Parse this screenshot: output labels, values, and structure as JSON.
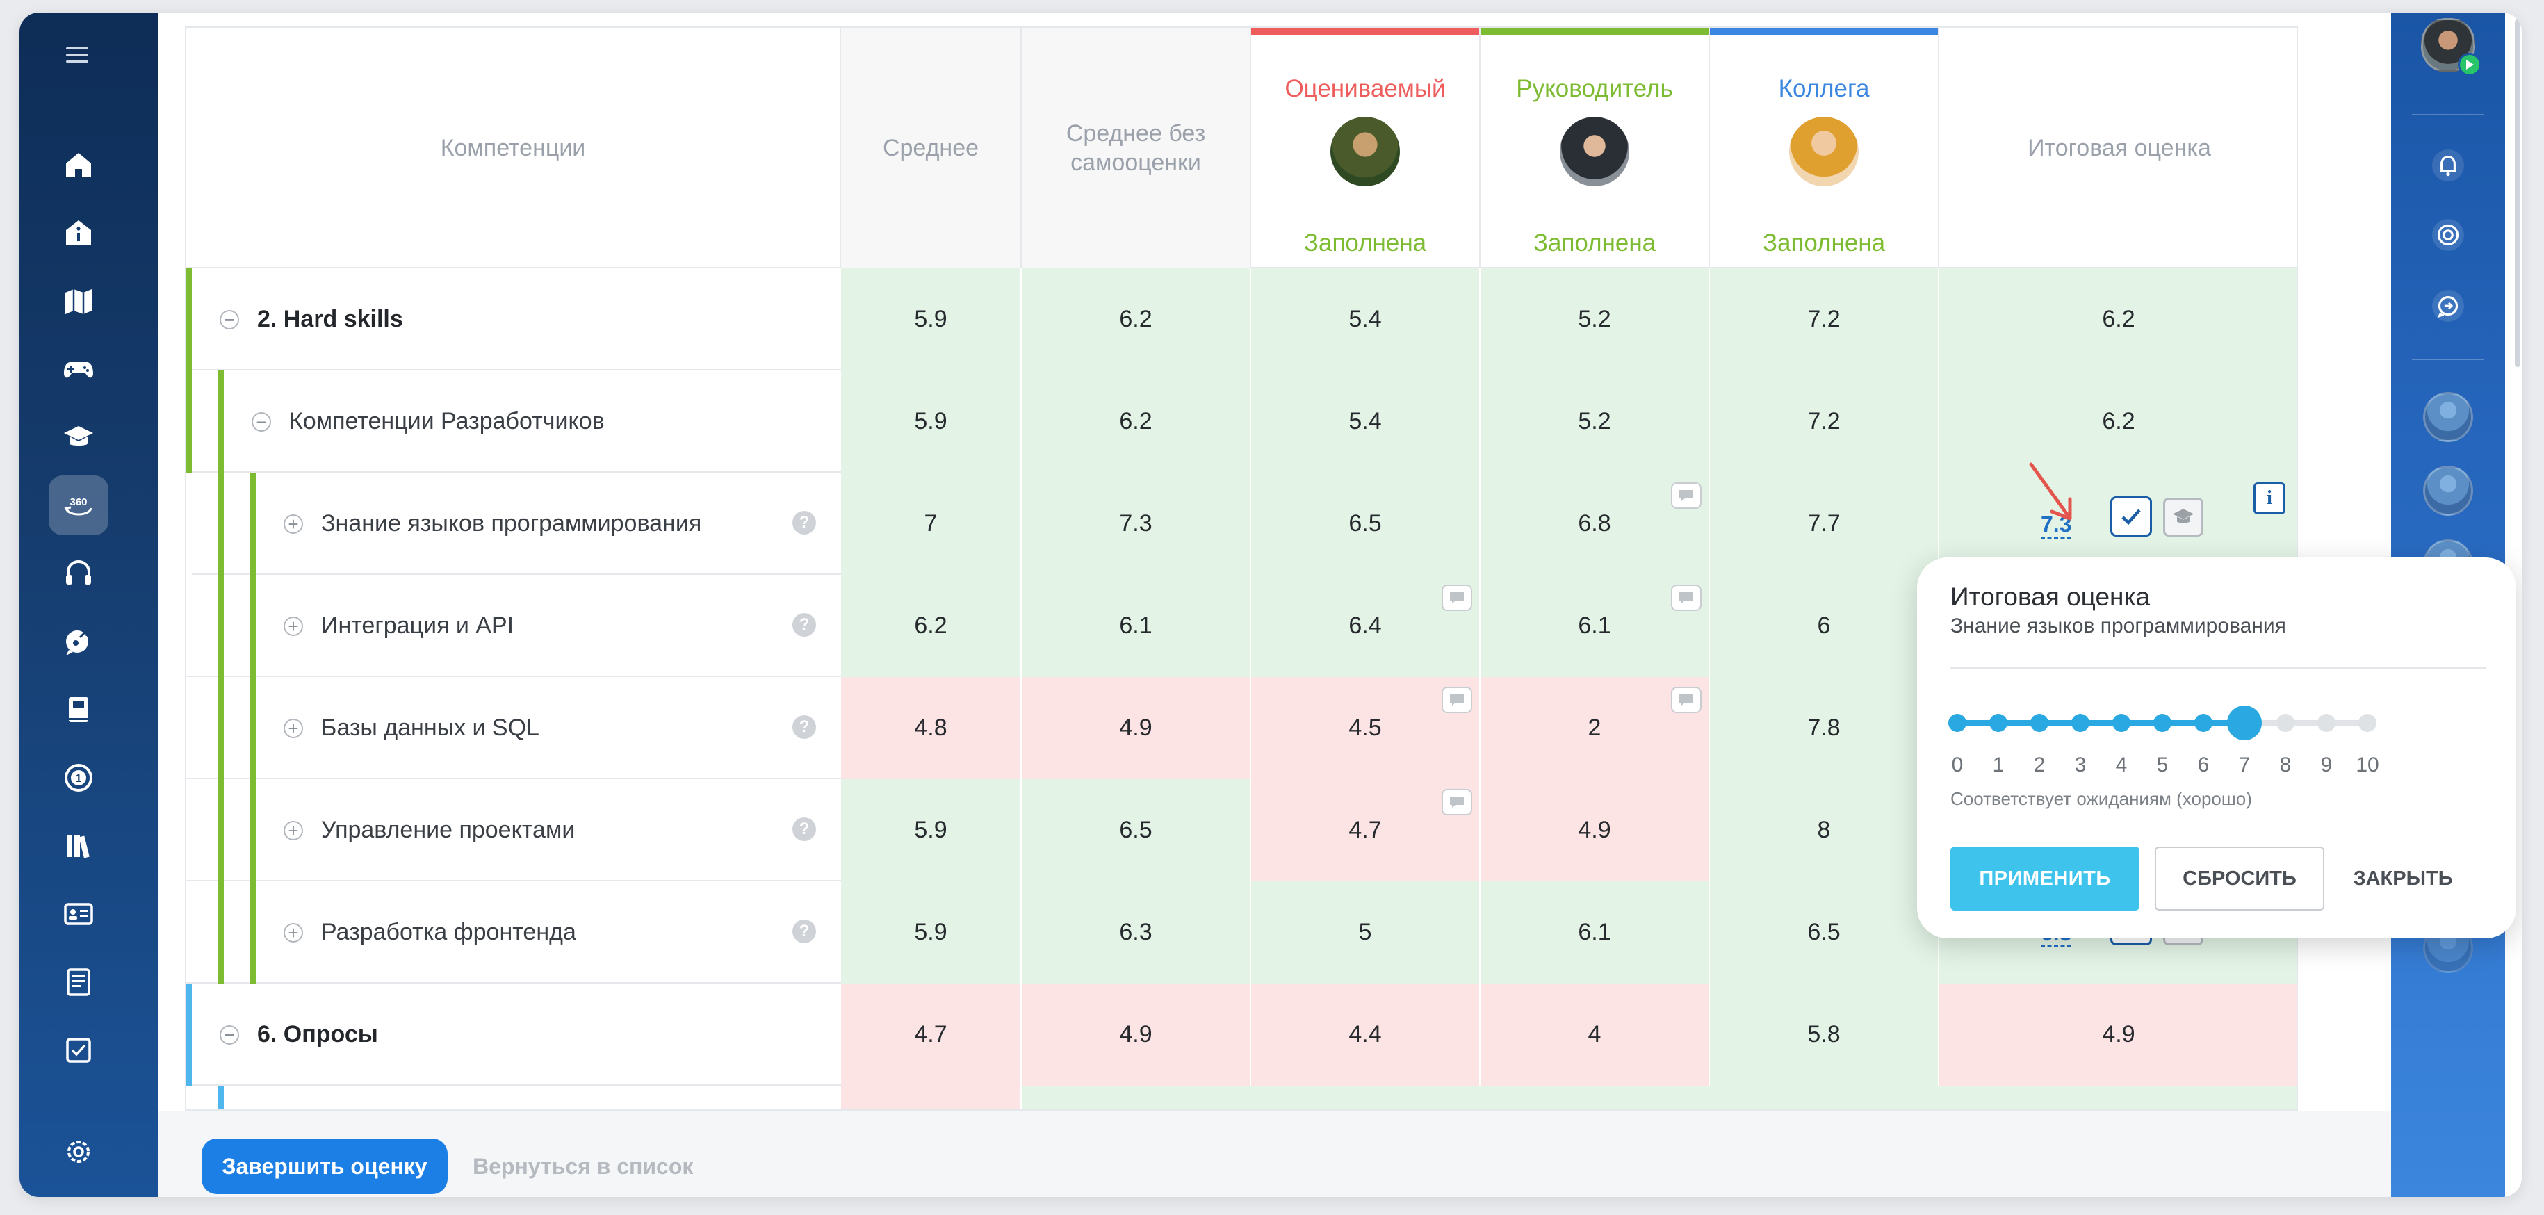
{
  "table": {
    "headers": {
      "competencies": "Компетенции",
      "average": "Среднее",
      "average_no_self": "Среднее без самооценки",
      "final": "Итоговая оценка"
    },
    "raters": [
      {
        "name": "Оцениваемый",
        "status": "Заполнена",
        "color": "#ee5c5c"
      },
      {
        "name": "Руководитель",
        "status": "Заполнена",
        "color": "#7dbb32"
      },
      {
        "name": "Коллега",
        "status": "Заполнена",
        "color": "#3a86e0"
      }
    ],
    "rows": [
      {
        "label": "2. Hard skills",
        "values": [
          "5.9",
          "6.2",
          "5.4",
          "5.2",
          "7.2",
          "6.2"
        ]
      },
      {
        "label": "Компетенции Разработчиков",
        "values": [
          "5.9",
          "6.2",
          "5.4",
          "5.2",
          "7.2",
          "6.2"
        ]
      },
      {
        "label": "Знание языков программирования",
        "values": [
          "7",
          "7.3",
          "6.5",
          "6.8",
          "7.7"
        ],
        "final": "7.3"
      },
      {
        "label": "Интеграция и API",
        "values": [
          "6.2",
          "6.1",
          "6.4",
          "6.1",
          "6"
        ]
      },
      {
        "label": "Базы данных и SQL",
        "values": [
          "4.8",
          "4.9",
          "4.5",
          "2",
          "7.8"
        ]
      },
      {
        "label": "Управление проектами",
        "values": [
          "5.9",
          "6.5",
          "4.7",
          "4.9",
          "8"
        ]
      },
      {
        "label": "Разработка фронтенда",
        "values": [
          "5.9",
          "6.3",
          "5",
          "6.1",
          "6.5"
        ],
        "final": "6.3"
      },
      {
        "label": "6. Опросы",
        "values": [
          "4.7",
          "4.9",
          "4.4",
          "4",
          "5.8",
          "4.9"
        ]
      }
    ],
    "expand_symbol": "−",
    "collapse_symbol": "+",
    "help_symbol": "?",
    "info_symbol": "i"
  },
  "popup": {
    "title": "Итоговая оценка",
    "subtitle": "Знание языков программирования",
    "scale": [
      "0",
      "1",
      "2",
      "3",
      "4",
      "5",
      "6",
      "7",
      "8",
      "9",
      "10"
    ],
    "value": 7,
    "description": "Соответствует ожиданиям (хорошо)",
    "apply": "ПРИМЕНИТЬ",
    "reset": "СБРОСИТЬ",
    "close": "ЗАКРЫТЬ"
  },
  "footer": {
    "finish": "Завершить оценку",
    "back": "Вернуться в список"
  },
  "icons": {
    "sidebar": [
      "menu-icon",
      "home-icon",
      "info-icon",
      "map-icon",
      "gamepad-icon",
      "graduation-cap-icon",
      "360-review-icon",
      "headset-icon",
      "chat-wrench-icon",
      "book-icon",
      "target-1-icon",
      "library-icon",
      "id-card-icon",
      "document-icon",
      "checkbox-icon",
      "settings-icon"
    ],
    "right_sidebar": [
      "bell-icon",
      "radar-icon",
      "chat-sync-icon"
    ]
  },
  "colors": {
    "accent_green": "#7dbb32",
    "accent_blue": "#4fb7ee",
    "cell_green": "#e3f4e6",
    "cell_red": "#fde4e4",
    "primary_button": "#1c7fe6",
    "apply_button": "#3ec3ec"
  }
}
